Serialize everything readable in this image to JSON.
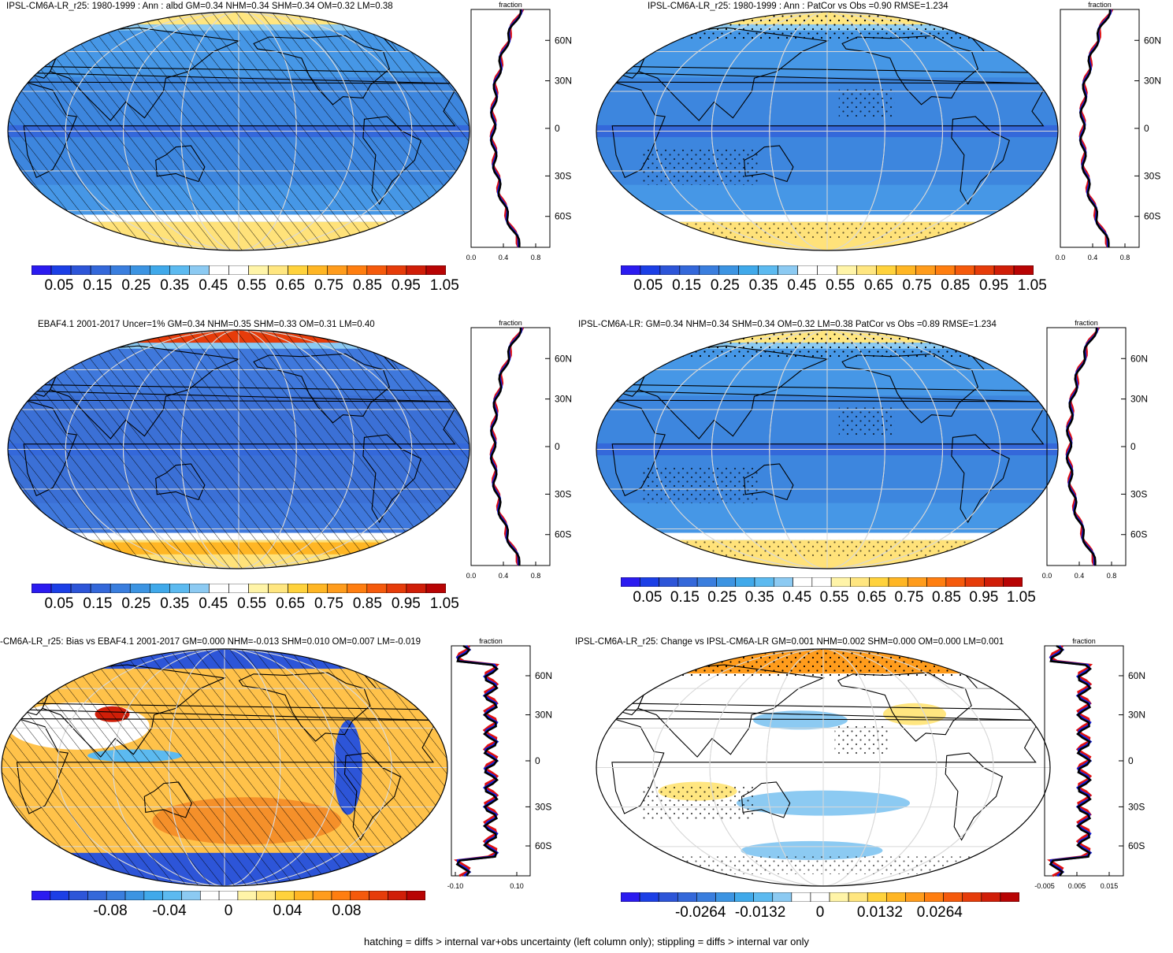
{
  "panels": [
    {
      "id": "p1",
      "title": "IPSL-CM6A-LR_r25: 1980-1999 : Ann : albd GM=0.34 NHM=0.34 SHM=0.34 OM=0.32 LM=0.38",
      "colorbar_labels": [
        "0.05",
        "0.15",
        "0.25",
        "0.35",
        "0.45",
        "0.55",
        "0.65",
        "0.75",
        "0.85",
        "0.95",
        "1.05"
      ],
      "profile_x_ticks": [
        "0.0",
        "0.4",
        "0.8"
      ],
      "profile_y_ticks": [
        "60N",
        "30N",
        "0",
        "30S",
        "60S"
      ],
      "profile_label": "fraction",
      "overlay": "hatch",
      "style": "albedo"
    },
    {
      "id": "p2",
      "title": "IPSL-CM6A-LR_r25: 1980-1999 : Ann : PatCor vs Obs =0.90 RMSE=1.234",
      "colorbar_labels": [
        "0.05",
        "0.15",
        "0.25",
        "0.35",
        "0.45",
        "0.55",
        "0.65",
        "0.75",
        "0.85",
        "0.95",
        "1.05"
      ],
      "profile_x_ticks": [
        "0.0",
        "0.4",
        "0.8"
      ],
      "profile_y_ticks": [
        "60N",
        "30N",
        "0",
        "30S",
        "60S"
      ],
      "profile_label": "fraction",
      "overlay": "stipple",
      "style": "albedo"
    },
    {
      "id": "p3",
      "title": "EBAF4.1 2001-2017 Uncer=1% GM=0.34 NHM=0.35 SHM=0.33 OM=0.31 LM=0.40",
      "colorbar_labels": [
        "0.05",
        "0.15",
        "0.25",
        "0.35",
        "0.45",
        "0.55",
        "0.65",
        "0.75",
        "0.85",
        "0.95",
        "1.05"
      ],
      "profile_x_ticks": [
        "0.0",
        "0.4",
        "0.8"
      ],
      "profile_y_ticks": [
        "60N",
        "30N",
        "0",
        "30S",
        "60S"
      ],
      "profile_label": "fraction",
      "overlay": "hatch",
      "style": "obs"
    },
    {
      "id": "p4",
      "title": "IPSL-CM6A-LR: GM=0.34 NHM=0.34 SHM=0.34 OM=0.32 LM=0.38 PatCor vs Obs =0.89 RMSE=1.234",
      "colorbar_labels": [
        "0.05",
        "0.15",
        "0.25",
        "0.35",
        "0.45",
        "0.55",
        "0.65",
        "0.75",
        "0.85",
        "0.95",
        "1.05"
      ],
      "profile_x_ticks": [
        "0.0",
        "0.4",
        "0.8"
      ],
      "profile_y_ticks": [
        "60N",
        "30N",
        "0",
        "30S",
        "60S"
      ],
      "profile_label": "fraction",
      "overlay": "stipple",
      "style": "albedo"
    },
    {
      "id": "p5",
      "title": "-CM6A-LR_r25: Bias vs EBAF4.1 2001-2017 GM=0.000 NHM=-0.013 SHM=0.010 OM=0.007 LM=-0.019",
      "colorbar_labels": [
        "-0.08",
        "-0.04",
        "0",
        "0.04",
        "0.08"
      ],
      "profile_x_ticks": [
        "-0.10",
        "0.10"
      ],
      "profile_y_ticks": [
        "60N",
        "30N",
        "0",
        "30S",
        "60S"
      ],
      "profile_label": "fraction",
      "overlay": "hatch",
      "style": "bias"
    },
    {
      "id": "p6",
      "title": "IPSL-CM6A-LR_r25: Change vs IPSL-CM6A-LR GM=0.001 NHM=0.002 SHM=0.000 OM=0.000 LM=0.001",
      "colorbar_labels": [
        "-0.0264",
        "-0.0132",
        "0",
        "0.0132",
        "0.0264"
      ],
      "profile_x_ticks": [
        "-0.005",
        "0.005",
        "0.015"
      ],
      "profile_y_ticks": [
        "60N",
        "30N",
        "0",
        "30S",
        "60S"
      ],
      "profile_label": "fraction",
      "overlay": "stipple",
      "style": "change"
    }
  ],
  "colorscale": [
    "#2b1bf0",
    "#1c3fe6",
    "#2d55d8",
    "#3468da",
    "#3a7ede",
    "#3c94e2",
    "#40a9ea",
    "#5cbaf0",
    "#8ccaf2",
    "#ffffff",
    "#ffffff",
    "#fff4a8",
    "#ffe680",
    "#ffd23c",
    "#ffb624",
    "#ff9c1c",
    "#ff7e10",
    "#f55a0c",
    "#e63c0a",
    "#d01e08",
    "#b80404"
  ],
  "footer": "hatching = diffs > internal var+obs uncertainty (left column only); stippling = diffs > internal var only"
}
